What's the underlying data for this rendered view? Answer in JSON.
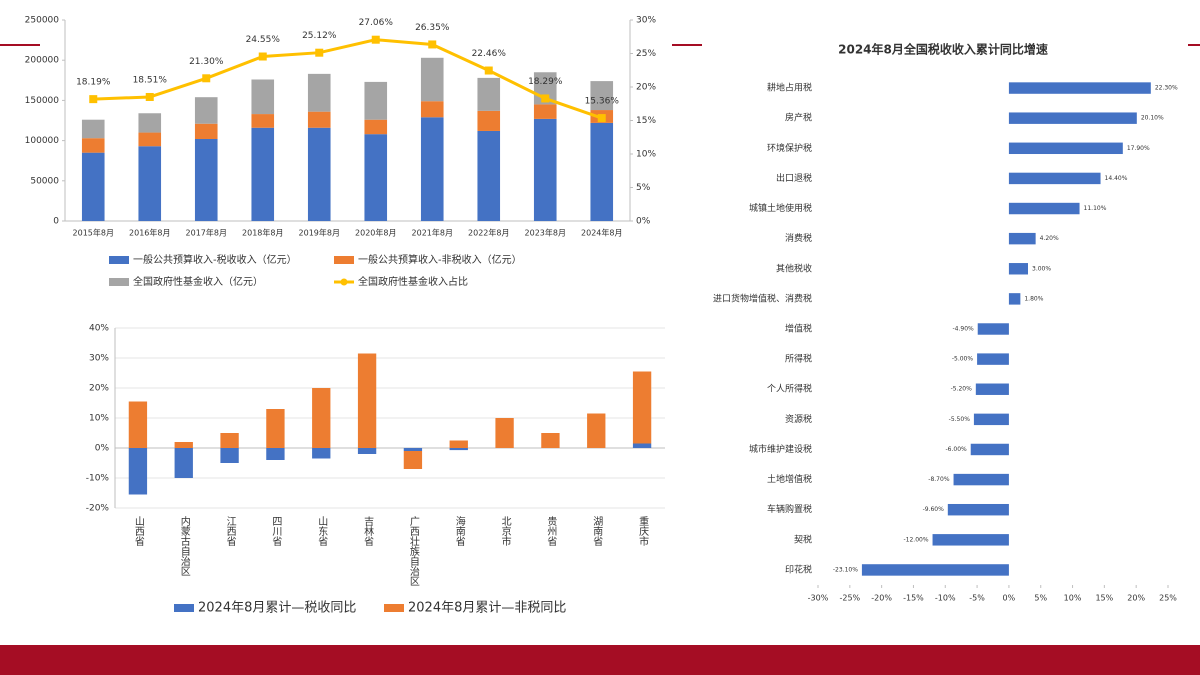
{
  "chart_data": [
    {
      "type": "bar",
      "stacked": true,
      "grid": false,
      "categories": [
        "2015年8月",
        "2016年8月",
        "2017年8月",
        "2018年8月",
        "2019年8月",
        "2020年8月",
        "2021年8月",
        "2022年8月",
        "2023年8月",
        "2024年8月"
      ],
      "series": [
        {
          "name": "一般公共预算收入-税收收入（亿元）",
          "color": "#4472c4",
          "values": [
            85000,
            93000,
            102000,
            116000,
            116000,
            108000,
            129000,
            112000,
            127000,
            122000
          ]
        },
        {
          "name": "一般公共预算收入-非税收入（亿元）",
          "color": "#ed7d31",
          "values": [
            18000,
            17000,
            19000,
            17000,
            20000,
            18000,
            20000,
            25000,
            18000,
            16000
          ]
        },
        {
          "name": "全国政府性基金收入（亿元）",
          "color": "#a5a5a5",
          "values": [
            23000,
            24000,
            33000,
            43000,
            47000,
            47000,
            54000,
            41000,
            40000,
            36000
          ]
        },
        {
          "name": "全国政府性基金收入占比",
          "color": "#ffc000",
          "type": "line",
          "axis": "y2",
          "values": [
            18.19,
            18.51,
            21.3,
            24.55,
            25.12,
            27.06,
            26.35,
            22.46,
            18.29,
            15.36
          ],
          "value_labels": [
            "18.19%",
            "18.51%",
            "21.30%",
            "24.55%",
            "25.12%",
            "27.06%",
            "26.35%",
            "22.46%",
            "18.29%",
            "15.36%"
          ]
        }
      ],
      "ylim": [
        0,
        250000
      ],
      "yticks": [
        0,
        50000,
        100000,
        150000,
        200000,
        250000
      ],
      "y2lim": [
        0,
        30
      ],
      "y2ticks": [
        {
          "value": 0,
          "label": "0%"
        },
        {
          "value": 5,
          "label": "5%"
        },
        {
          "value": 10,
          "label": "10%"
        },
        {
          "value": 15,
          "label": "15%"
        },
        {
          "value": 20,
          "label": "20%"
        },
        {
          "value": 25,
          "label": "25%"
        },
        {
          "value": 30,
          "label": "30%"
        }
      ]
    },
    {
      "type": "bar",
      "stacked": true,
      "grid": true,
      "vertical_labels": true,
      "categories": [
        "山西省",
        "内蒙古自治区",
        "江西省",
        "四川省",
        "山东省",
        "吉林省",
        "广西壮族自治区",
        "海南省",
        "北京市",
        "贵州省",
        "湖南省",
        "重庆市"
      ],
      "series": [
        {
          "name": "2024年8月累计—税收同比",
          "color": "#4472c4",
          "values": [
            -15.5,
            -10,
            -5,
            -4,
            -3.5,
            -2,
            -1,
            -0.7,
            0,
            0,
            0,
            1.5
          ]
        },
        {
          "name": "2024年8月累计—非税同比",
          "color": "#ed7d31",
          "values": [
            15.5,
            2,
            5,
            13,
            20,
            31.5,
            -6,
            2.5,
            10,
            5,
            11.5,
            24
          ]
        }
      ],
      "ylim": [
        -20,
        40
      ],
      "yticks": [
        {
          "value": -20,
          "label": "-20%"
        },
        {
          "value": -10,
          "label": "-10%"
        },
        {
          "value": 0,
          "label": "0%"
        },
        {
          "value": 10,
          "label": "10%"
        },
        {
          "value": 20,
          "label": "20%"
        },
        {
          "value": 30,
          "label": "30%"
        },
        {
          "value": 40,
          "label": "40%"
        }
      ]
    },
    {
      "type": "barh",
      "title": "2024年8月全国税收收入累计同比增速",
      "color": "#4472c4",
      "categories": [
        "耕地占用税",
        "房产税",
        "环境保护税",
        "出口退税",
        "城镇土地使用税",
        "消费税",
        "其他税收",
        "进口货物增值税、消费税",
        "增值税",
        "所得税",
        "个人所得税",
        "资源税",
        "城市维护建设税",
        "土地增值税",
        "车辆购置税",
        "契税",
        "印花税"
      ],
      "values": [
        22.3,
        20.1,
        17.9,
        14.4,
        11.1,
        4.2,
        3.0,
        1.8,
        -4.9,
        -5.0,
        -5.2,
        -5.5,
        -6.0,
        -8.7,
        -9.6,
        -12.0,
        -23.1
      ],
      "value_labels": [
        "22.30%",
        "20.10%",
        "17.90%",
        "14.40%",
        "11.10%",
        "4.20%",
        "3.00%",
        "1.80%",
        "-4.90%",
        "-5.00%",
        "-5.20%",
        "-5.50%",
        "-6.00%",
        "-8.70%",
        "-9.60%",
        "-12.00%",
        "-23.10%"
      ],
      "xlim": [
        -30,
        25
      ],
      "xticks": [
        {
          "value": -30,
          "label": "-30%"
        },
        {
          "value": -25,
          "label": "-25%"
        },
        {
          "value": -20,
          "label": "-20%"
        },
        {
          "value": -15,
          "label": "-15%"
        },
        {
          "value": -10,
          "label": "-10%"
        },
        {
          "value": -5,
          "label": "-5%"
        },
        {
          "value": 0,
          "label": "0%"
        },
        {
          "value": 5,
          "label": "5%"
        },
        {
          "value": 10,
          "label": "10%"
        },
        {
          "value": 15,
          "label": "15%"
        },
        {
          "value": 20,
          "label": "20%"
        },
        {
          "value": 25,
          "label": "25%"
        }
      ]
    }
  ]
}
